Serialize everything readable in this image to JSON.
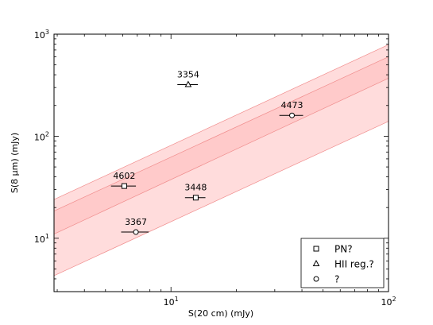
{
  "chart_data": {
    "type": "scatter",
    "title": "",
    "xlabel": "S(20 cm) (mJy)",
    "ylabel": "S(8 µm) (mJy)",
    "xscale": "log",
    "yscale": "log",
    "xlim": [
      2.9,
      100
    ],
    "ylim": [
      3,
      1000
    ],
    "x_ticks": [
      {
        "value": 10,
        "label": "10",
        "base": "10",
        "exp": "1"
      },
      {
        "value": 100,
        "label": "100",
        "base": "10",
        "exp": "2"
      }
    ],
    "y_ticks": [
      {
        "value": 10,
        "label": "10",
        "base": "10",
        "exp": "1"
      },
      {
        "value": 100,
        "label": "100",
        "base": "10",
        "exp": "2"
      },
      {
        "value": 1000,
        "label": "1000",
        "base": "10",
        "exp": "3"
      }
    ],
    "grid": false,
    "legend_position": "bottom-right",
    "bands": [
      {
        "x": [
          2.9,
          100
        ],
        "y_low": [
          4.3,
          140
        ],
        "y_high": [
          24,
          790
        ],
        "color": "#ffd6d6"
      },
      {
        "x": [
          2.9,
          100
        ],
        "y_low": [
          11,
          370
        ],
        "y_high": [
          18.5,
          600
        ],
        "color": "#ffc4c4"
      }
    ],
    "series": [
      {
        "name": "PN?",
        "marker": "square",
        "points": [
          {
            "label": "4602",
            "x": 6.1,
            "y": 32.5,
            "xerr": 0.8
          },
          {
            "label": "3448",
            "x": 13.0,
            "y": 25.0,
            "xerr": 1.4
          }
        ]
      },
      {
        "name": "HII reg.?",
        "marker": "triangle",
        "points": [
          {
            "label": "3354",
            "x": 12.0,
            "y": 320,
            "xerr": 1.3
          }
        ]
      },
      {
        "name": "?",
        "marker": "circle",
        "points": [
          {
            "label": "4473",
            "x": 36.0,
            "y": 160,
            "xerr": 4.5
          },
          {
            "label": "3367",
            "x": 6.9,
            "y": 11.5,
            "xerr": 1.0
          }
        ]
      }
    ]
  },
  "colors": {
    "band_outer": "#ffd6d6",
    "band_inner": "#ffc4c4",
    "band_edge": "#f08c8c",
    "axes": "#000000"
  }
}
